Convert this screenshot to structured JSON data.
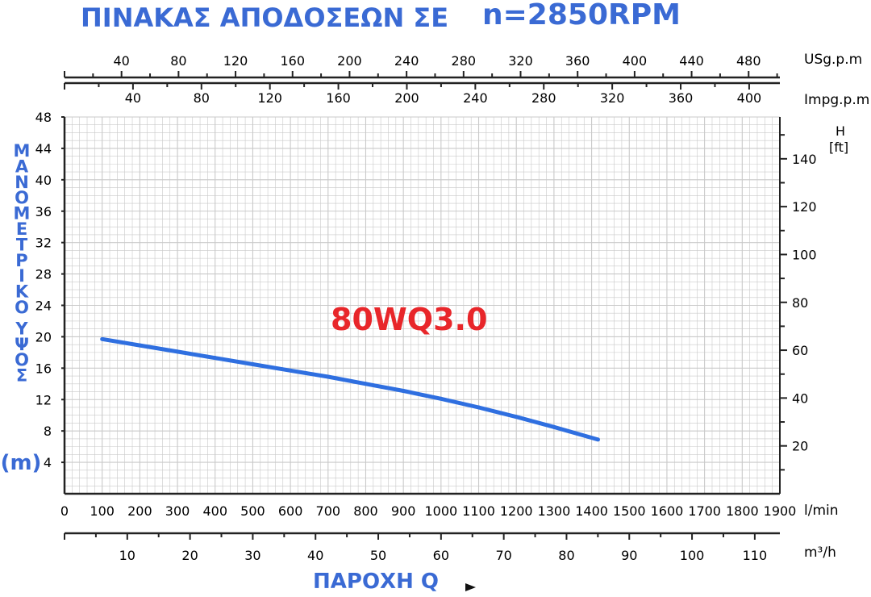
{
  "title": {
    "main": "ΠΙΝΑΚΑΣ ΑΠΟΔΟΣΕΩΝ ΣΕ",
    "speed": "n=2850RPM"
  },
  "colors": {
    "title_blue": "#3a6ad4",
    "curve_blue": "#2f6fe0",
    "model_red": "#e8262a",
    "grid": "#c9c9c9",
    "axis": "#222222"
  },
  "chart_data": {
    "type": "line",
    "title": "ΠΙΝΑΚΑΣ ΑΠΟΔΟΣΕΩΝ ΣΕ n=2850RPM",
    "model_label": "80WQ3.0",
    "xlabel": "ΠΑΡΟΧΗ Q",
    "ylabel": "ΜΑΝΟΜΕΤΡΙΚΟ ΥΨΟΣ",
    "ylabel_unit": "(m)",
    "xlim": [
      0,
      1900
    ],
    "ylim": [
      0,
      48
    ],
    "grid": true,
    "x_unit": "l/min",
    "x_ticks": [
      0,
      100,
      200,
      300,
      400,
      500,
      600,
      700,
      800,
      900,
      1000,
      1100,
      1200,
      1300,
      1400,
      1500,
      1600,
      1700,
      1800,
      1900
    ],
    "y_ticks": [
      4,
      8,
      12,
      16,
      20,
      24,
      28,
      32,
      36,
      40,
      44,
      48
    ],
    "secondary_axes": {
      "top_usgpm": {
        "unit": "USg.p.m",
        "ticks": [
          40,
          80,
          120,
          160,
          200,
          240,
          280,
          320,
          360,
          400,
          440,
          480
        ],
        "per_lmin": 0.264172
      },
      "top_impgpm": {
        "unit": "Impg.p.m",
        "ticks": [
          40,
          80,
          120,
          160,
          200,
          240,
          280,
          320,
          360,
          400
        ],
        "per_lmin": 0.219969
      },
      "bottom_m3h": {
        "unit": "m³/h",
        "ticks": [
          10,
          20,
          30,
          40,
          50,
          60,
          70,
          80,
          90,
          100,
          110
        ],
        "per_lmin": 0.06
      },
      "right_ft": {
        "unit": "[ft]",
        "label": "H",
        "ticks": [
          20,
          40,
          60,
          80,
          100,
          120,
          140
        ],
        "per_m": 3.28084
      }
    },
    "series": [
      {
        "name": "80WQ3.0",
        "x": [
          100,
          200,
          300,
          400,
          500,
          600,
          700,
          800,
          900,
          1000,
          1100,
          1200,
          1300,
          1417
        ],
        "y": [
          19.7,
          18.9,
          18.1,
          17.3,
          16.5,
          15.7,
          14.9,
          14.0,
          13.1,
          12.1,
          11.0,
          9.8,
          8.5,
          6.9
        ]
      }
    ]
  }
}
